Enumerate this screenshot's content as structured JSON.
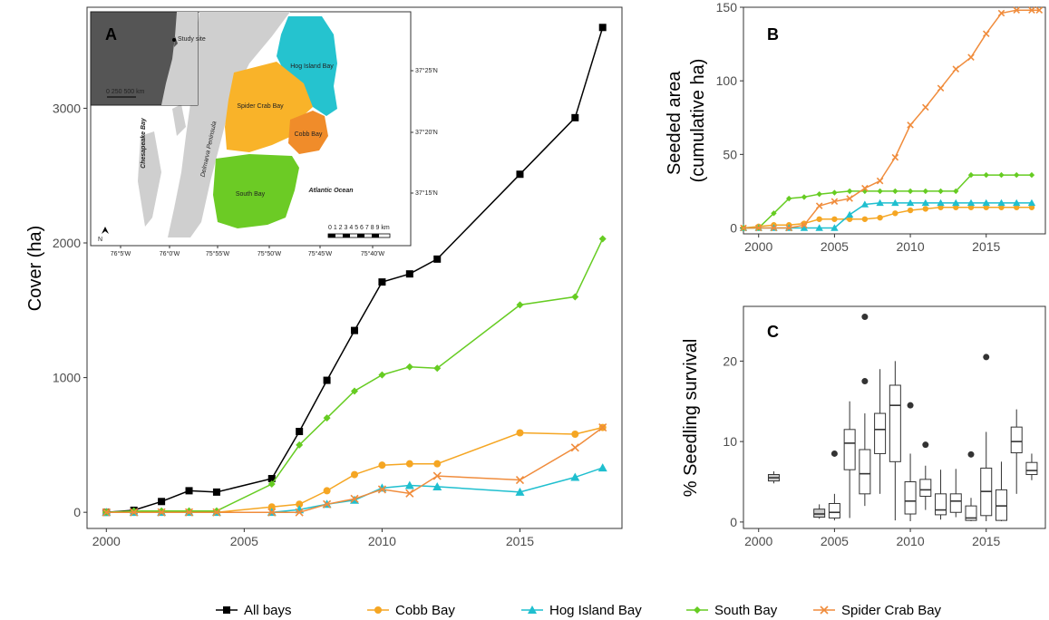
{
  "colors": {
    "All bays": "#000000",
    "Cobb Bay": "#F5A623",
    "Hog Island Bay": "#1FBFCF",
    "South Bay": "#66CC22",
    "Spider Crab Bay": "#F08C3C"
  },
  "markers": {
    "All bays": "square",
    "Cobb Bay": "circle",
    "Hog Island Bay": "triangle",
    "South Bay": "diamond",
    "Spider Crab Bay": "x"
  },
  "legend": {
    "position": "bottom",
    "items": [
      "All bays",
      "Cobb Bay",
      "Hog Island Bay",
      "South Bay",
      "Spider Crab Bay"
    ]
  },
  "map": {
    "panel_label": "A",
    "labels": {
      "hog": "Hog Island Bay",
      "spider": "Spider Crab Bay",
      "cobb": "Cobb Bay",
      "south": "South Bay",
      "ocean": "Atlantic Ocean",
      "chesapeake": "Chesapeake Bay",
      "delmarva": "Delmarva Peninsula",
      "study_site": "Study site",
      "inset_scale": "0  250 500 km",
      "scale": "0 1 2 3 4 5 6 7 8 9 km",
      "north": "N"
    },
    "lon_ticks": [
      "76°5'W",
      "76°0'W",
      "75°55'W",
      "75°50'W",
      "75°45'W",
      "75°40'W"
    ],
    "lat_ticks": [
      "37°25'N",
      "37°20'N",
      "37°15'N"
    ]
  },
  "chart_data": [
    {
      "panel": "A",
      "type": "line",
      "title": "",
      "xlabel": "",
      "ylabel": "Cover (ha)",
      "xlim": [
        1999.3,
        2018.7
      ],
      "ylim": [
        -120,
        3750
      ],
      "xticks": [
        2000,
        2005,
        2010,
        2015
      ],
      "yticks": [
        0,
        1000,
        2000,
        3000
      ],
      "grid": false,
      "series": [
        {
          "name": "All bays",
          "x": [
            2000,
            2001,
            2002,
            2003,
            2004,
            2006,
            2007,
            2008,
            2009,
            2010,
            2011,
            2012,
            2015,
            2017,
            2018
          ],
          "values": [
            0,
            15,
            80,
            160,
            150,
            250,
            600,
            980,
            1350,
            1710,
            1770,
            1880,
            2510,
            2930,
            3600
          ]
        },
        {
          "name": "Cobb Bay",
          "x": [
            2000,
            2001,
            2002,
            2003,
            2004,
            2006,
            2007,
            2008,
            2009,
            2010,
            2011,
            2012,
            2015,
            2017,
            2018
          ],
          "values": [
            0,
            0,
            0,
            0,
            0,
            40,
            60,
            160,
            280,
            350,
            360,
            360,
            590,
            580,
            630
          ]
        },
        {
          "name": "Hog Island Bay",
          "x": [
            2000,
            2001,
            2002,
            2003,
            2004,
            2006,
            2007,
            2008,
            2009,
            2010,
            2011,
            2012,
            2015,
            2017,
            2018
          ],
          "values": [
            0,
            0,
            0,
            0,
            0,
            0,
            20,
            60,
            90,
            180,
            200,
            190,
            150,
            260,
            330
          ]
        },
        {
          "name": "South Bay",
          "x": [
            2000,
            2001,
            2002,
            2003,
            2004,
            2006,
            2007,
            2008,
            2009,
            2010,
            2011,
            2012,
            2015,
            2017,
            2018
          ],
          "values": [
            0,
            10,
            10,
            10,
            10,
            210,
            500,
            700,
            900,
            1020,
            1080,
            1070,
            1540,
            1600,
            2030
          ]
        },
        {
          "name": "Spider Crab Bay",
          "x": [
            2000,
            2001,
            2002,
            2003,
            2004,
            2006,
            2007,
            2008,
            2009,
            2010,
            2011,
            2012,
            2015,
            2017,
            2018
          ],
          "values": [
            0,
            0,
            0,
            0,
            0,
            0,
            0,
            60,
            100,
            170,
            140,
            270,
            240,
            480,
            630
          ]
        }
      ]
    },
    {
      "panel": "B",
      "type": "line",
      "title": "",
      "xlabel": "",
      "ylabel": "Seeded area\n(cumulative ha)",
      "xlim": [
        1999.0,
        2018.9
      ],
      "ylim": [
        -4,
        150
      ],
      "xticks": [
        2000,
        2005,
        2010,
        2015
      ],
      "yticks": [
        0,
        50,
        100,
        150
      ],
      "grid": false,
      "series": [
        {
          "name": "Cobb Bay",
          "x": [
            1999,
            2000,
            2001,
            2002,
            2003,
            2004,
            2005,
            2006,
            2007,
            2008,
            2009,
            2010,
            2011,
            2012,
            2013,
            2014,
            2015,
            2016,
            2017,
            2018
          ],
          "values": [
            0,
            1,
            2,
            2,
            3,
            6,
            6,
            6,
            6,
            7,
            10,
            12,
            13,
            14,
            14,
            14,
            14,
            14,
            14,
            14
          ]
        },
        {
          "name": "Hog Island Bay",
          "x": [
            1999,
            2000,
            2001,
            2002,
            2003,
            2004,
            2005,
            2006,
            2007,
            2008,
            2009,
            2010,
            2011,
            2012,
            2013,
            2014,
            2015,
            2016,
            2017,
            2018
          ],
          "values": [
            0,
            0,
            0,
            0,
            0,
            0,
            0,
            9,
            16,
            17,
            17,
            17,
            17,
            17,
            17,
            17,
            17,
            17,
            17,
            17
          ]
        },
        {
          "name": "South Bay",
          "x": [
            1999,
            2000,
            2001,
            2002,
            2003,
            2004,
            2005,
            2006,
            2007,
            2008,
            2009,
            2010,
            2011,
            2012,
            2013,
            2014,
            2015,
            2016,
            2017,
            2018
          ],
          "values": [
            0,
            0,
            10,
            20,
            21,
            23,
            24,
            25,
            25,
            25,
            25,
            25,
            25,
            25,
            25,
            36,
            36,
            36,
            36,
            36
          ]
        },
        {
          "name": "Spider Crab Bay",
          "x": [
            1999,
            2000,
            2001,
            2002,
            2003,
            2004,
            2005,
            2006,
            2007,
            2008,
            2009,
            2010,
            2011,
            2012,
            2013,
            2014,
            2015,
            2016,
            2017,
            2018,
            2018.5
          ],
          "values": [
            0,
            0,
            0,
            0,
            2,
            15,
            18,
            20,
            27,
            32,
            48,
            70,
            82,
            95,
            108,
            116,
            132,
            146,
            148,
            148,
            148
          ]
        }
      ]
    },
    {
      "panel": "C",
      "type": "box",
      "title": "",
      "xlabel": "",
      "ylabel": "% Seedling survival",
      "xlim": [
        1999.0,
        2018.9
      ],
      "ylim": [
        -0.8,
        26.8
      ],
      "xticks": [
        2000,
        2005,
        2010,
        2015
      ],
      "yticks": [
        0,
        10,
        20
      ],
      "grid": false,
      "boxes": [
        {
          "x": 2001,
          "min": 4.8,
          "q1": 5.1,
          "median": 5.5,
          "q3": 5.9,
          "max": 6.3,
          "outliers": []
        },
        {
          "x": 2004,
          "min": 0.4,
          "q1": 0.6,
          "median": 1.0,
          "q3": 1.6,
          "max": 2.2,
          "outliers": []
        },
        {
          "x": 2005,
          "min": 0.2,
          "q1": 0.5,
          "median": 1.2,
          "q3": 2.3,
          "max": 3.5,
          "outliers": [
            8.5
          ]
        },
        {
          "x": 2006,
          "min": 0.5,
          "q1": 6.5,
          "median": 9.8,
          "q3": 11.5,
          "max": 15.0,
          "outliers": []
        },
        {
          "x": 2007,
          "min": 2.0,
          "q1": 3.5,
          "median": 6.0,
          "q3": 9.0,
          "max": 13.5,
          "outliers": [
            17.5,
            25.5
          ]
        },
        {
          "x": 2008,
          "min": 3.5,
          "q1": 8.5,
          "median": 11.5,
          "q3": 13.5,
          "max": 19.0,
          "outliers": []
        },
        {
          "x": 2009,
          "min": 0.2,
          "q1": 7.5,
          "median": 14.5,
          "q3": 17.0,
          "max": 20.0,
          "outliers": []
        },
        {
          "x": 2010,
          "min": 0.1,
          "q1": 1.0,
          "median": 2.6,
          "q3": 5.0,
          "max": 8.5,
          "outliers": [
            14.5
          ]
        },
        {
          "x": 2011,
          "min": 1.5,
          "q1": 3.2,
          "median": 4.0,
          "q3": 5.3,
          "max": 7.0,
          "outliers": [
            9.6
          ]
        },
        {
          "x": 2012,
          "min": 0.3,
          "q1": 0.9,
          "median": 1.5,
          "q3": 3.5,
          "max": 6.5,
          "outliers": []
        },
        {
          "x": 2013,
          "min": 0.6,
          "q1": 1.2,
          "median": 2.6,
          "q3": 3.5,
          "max": 6.6,
          "outliers": []
        },
        {
          "x": 2014,
          "min": 0.1,
          "q1": 0.2,
          "median": 0.5,
          "q3": 2.0,
          "max": 3.0,
          "outliers": [
            8.4
          ]
        },
        {
          "x": 2015,
          "min": 0.1,
          "q1": 0.8,
          "median": 3.8,
          "q3": 6.7,
          "max": 11.2,
          "outliers": [
            20.5
          ]
        },
        {
          "x": 2016,
          "min": 0.1,
          "q1": 0.2,
          "median": 2.0,
          "q3": 4.0,
          "max": 7.5,
          "outliers": []
        },
        {
          "x": 2017,
          "min": 3.5,
          "q1": 8.6,
          "median": 10.0,
          "q3": 11.8,
          "max": 14.0,
          "outliers": []
        },
        {
          "x": 2018,
          "min": 5.2,
          "q1": 5.9,
          "median": 6.4,
          "q3": 7.4,
          "max": 8.5,
          "outliers": []
        }
      ]
    }
  ]
}
